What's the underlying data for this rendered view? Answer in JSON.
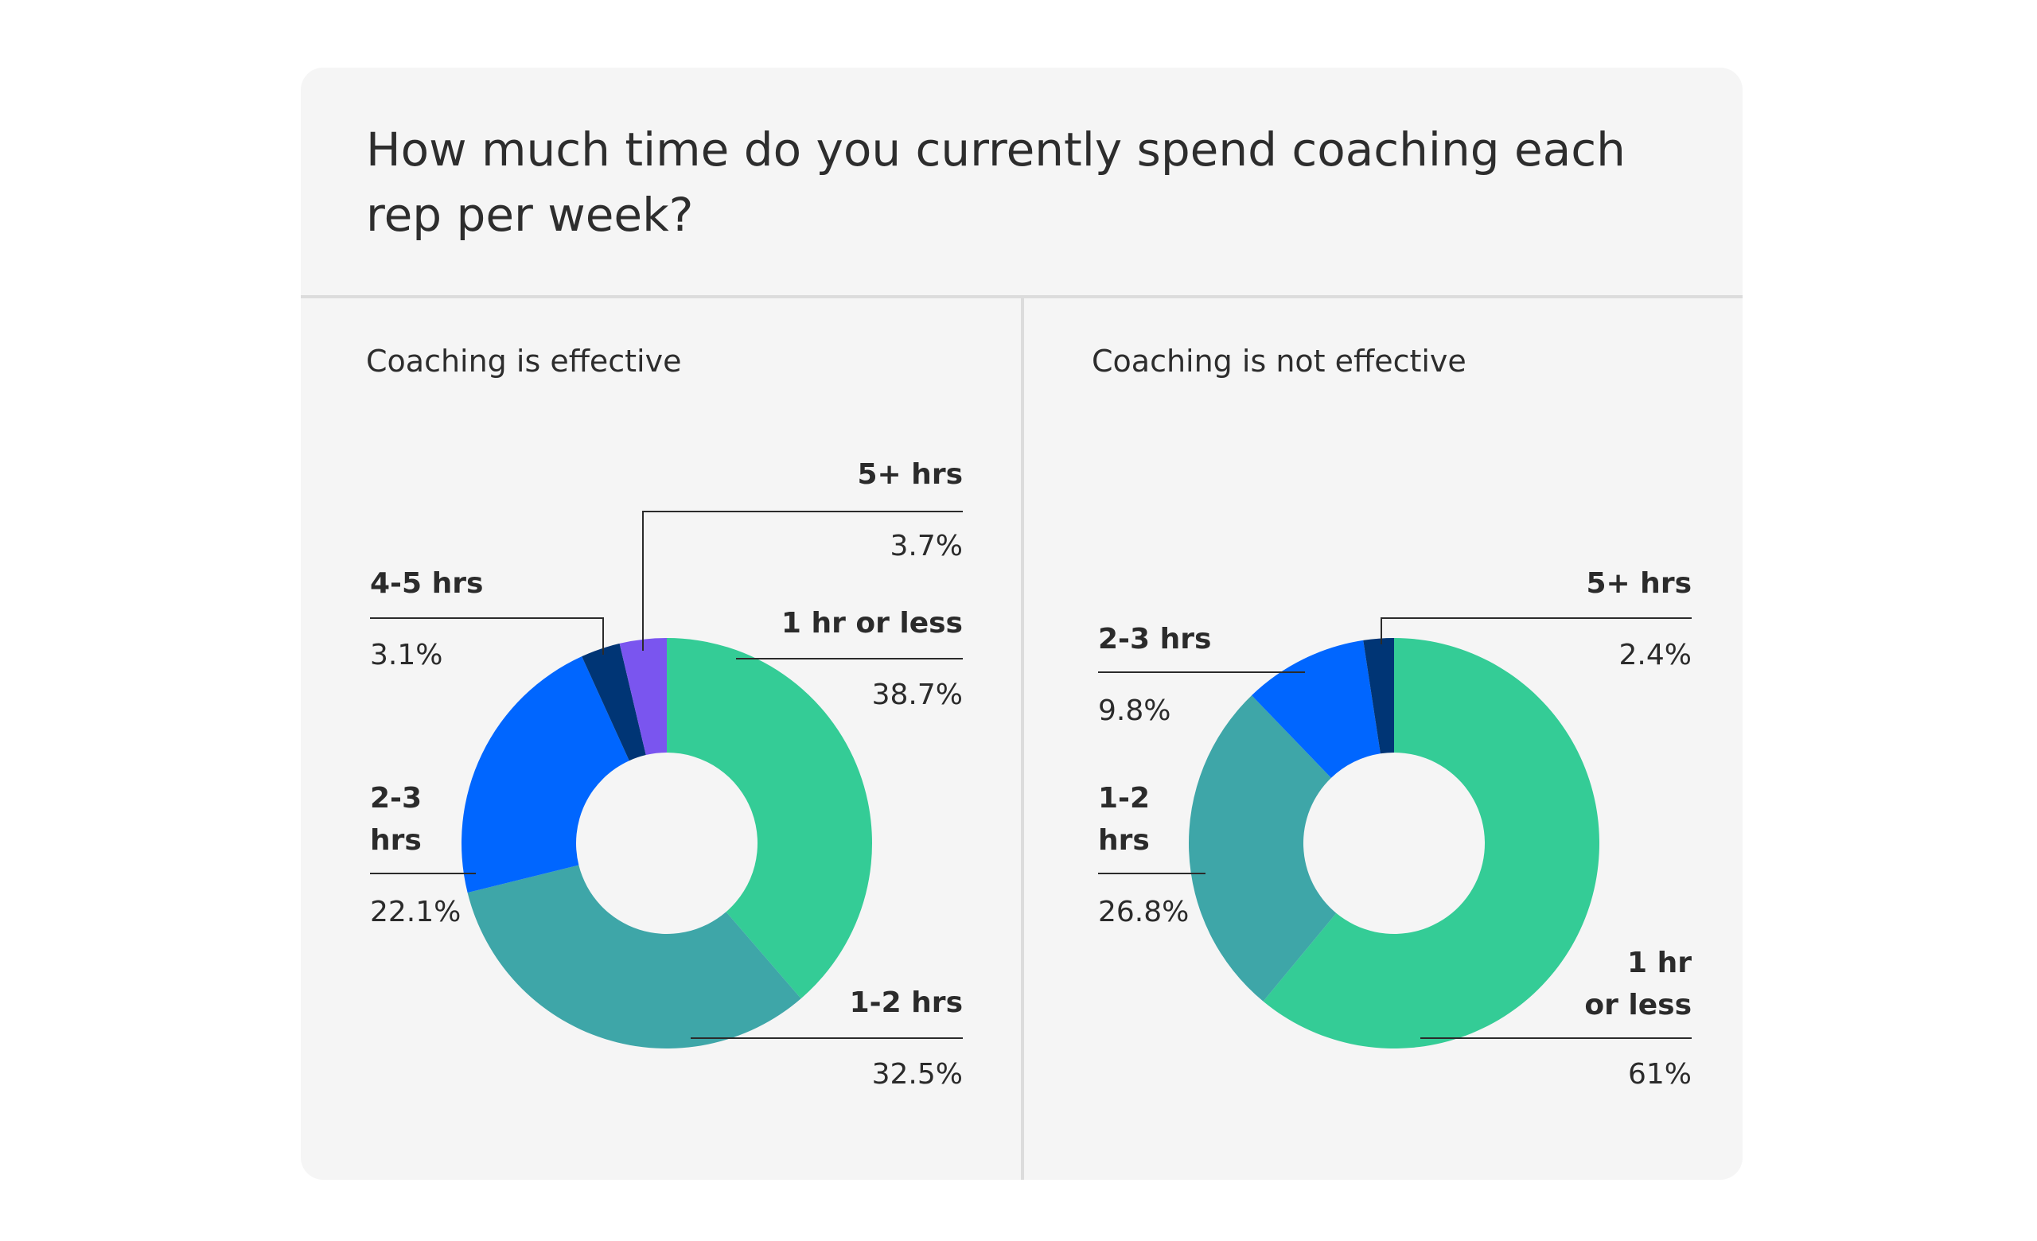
{
  "title": "How much time do you currently spend coaching each rep per week?",
  "chart_data": [
    {
      "type": "pie",
      "subtitle": "Coaching is effective",
      "slices": [
        {
          "label": "1 hr or less",
          "value": 38.7,
          "display": "38.7%",
          "color": "#34cc96"
        },
        {
          "label": "1-2 hrs",
          "value": 32.5,
          "display": "32.5%",
          "color": "#3ea6a8"
        },
        {
          "label": "2-3 hrs",
          "value": 22.1,
          "display": "22.1%",
          "color": "#0066ff"
        },
        {
          "label": "4-5 hrs",
          "value": 3.1,
          "display": "3.1%",
          "color": "#003575"
        },
        {
          "label": "5+ hrs",
          "value": 3.7,
          "display": "3.7%",
          "color": "#7a55ef"
        }
      ]
    },
    {
      "type": "pie",
      "subtitle": "Coaching is not effective",
      "slices": [
        {
          "label": "1 hr or less",
          "value": 61,
          "display": "61%",
          "color": "#34cc96"
        },
        {
          "label": "1-2 hrs",
          "value": 26.8,
          "display": "26.8%",
          "color": "#3ea6a8"
        },
        {
          "label": "2-3 hrs",
          "value": 9.8,
          "display": "9.8%",
          "color": "#0066ff"
        },
        {
          "label": "5+ hrs",
          "value": 2.4,
          "display": "2.4%",
          "color": "#003575"
        }
      ]
    }
  ]
}
